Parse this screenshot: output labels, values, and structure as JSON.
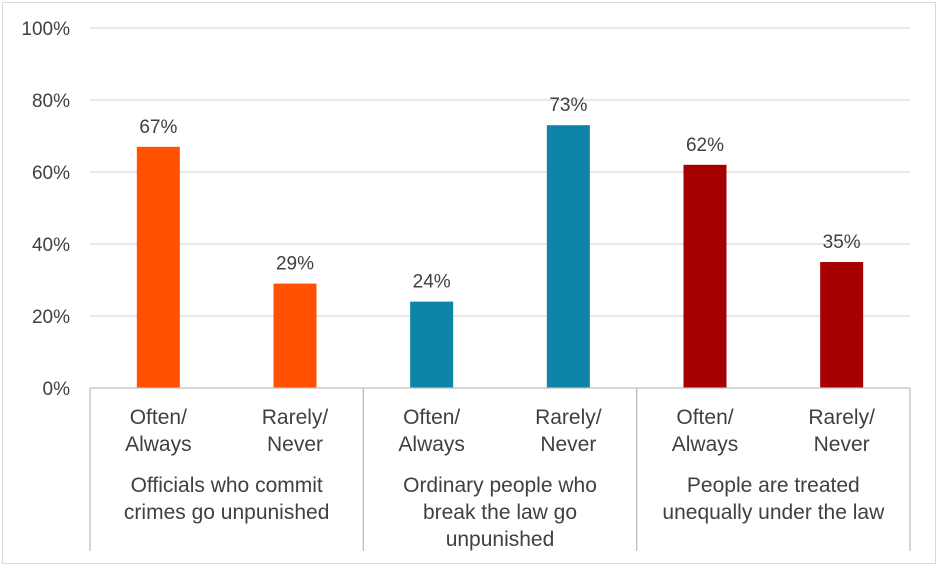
{
  "chart_data": {
    "type": "bar",
    "title": "",
    "xlabel": "",
    "ylabel": "",
    "ylim": [
      0,
      100
    ],
    "yticks": [
      "0%",
      "20%",
      "40%",
      "60%",
      "80%",
      "100%"
    ],
    "grid": true,
    "groups": [
      {
        "label": "Officials who commit crimes go unpunished",
        "label_lines": [
          "Officials who commit",
          "crimes go unpunished"
        ],
        "color": "#FF5100",
        "bars": [
          {
            "category": "Often/ Always",
            "category_lines": [
              "Often/",
              "Always"
            ],
            "value": 67,
            "label": "67%"
          },
          {
            "category": "Rarely/ Never",
            "category_lines": [
              "Rarely/",
              "Never"
            ],
            "value": 29,
            "label": "29%"
          }
        ]
      },
      {
        "label": "Ordinary people who break the law go unpunished",
        "label_lines": [
          "Ordinary people who",
          "break the law go",
          "unpunished"
        ],
        "color": "#0E85A8",
        "bars": [
          {
            "category": "Often/ Always",
            "category_lines": [
              "Often/",
              "Always"
            ],
            "value": 24,
            "label": "24%"
          },
          {
            "category": "Rarely/ Never",
            "category_lines": [
              "Rarely/",
              "Never"
            ],
            "value": 73,
            "label": "73%"
          }
        ]
      },
      {
        "label": "People are treated unequally under the law",
        "label_lines": [
          "People are treated",
          "unequally under the law"
        ],
        "color": "#A80000",
        "bars": [
          {
            "category": "Often/ Always",
            "category_lines": [
              "Often/",
              "Always"
            ],
            "value": 62,
            "label": "62%"
          },
          {
            "category": "Rarely/ Never",
            "category_lines": [
              "Rarely/",
              "Never"
            ],
            "value": 35,
            "label": "35%"
          }
        ]
      }
    ]
  }
}
